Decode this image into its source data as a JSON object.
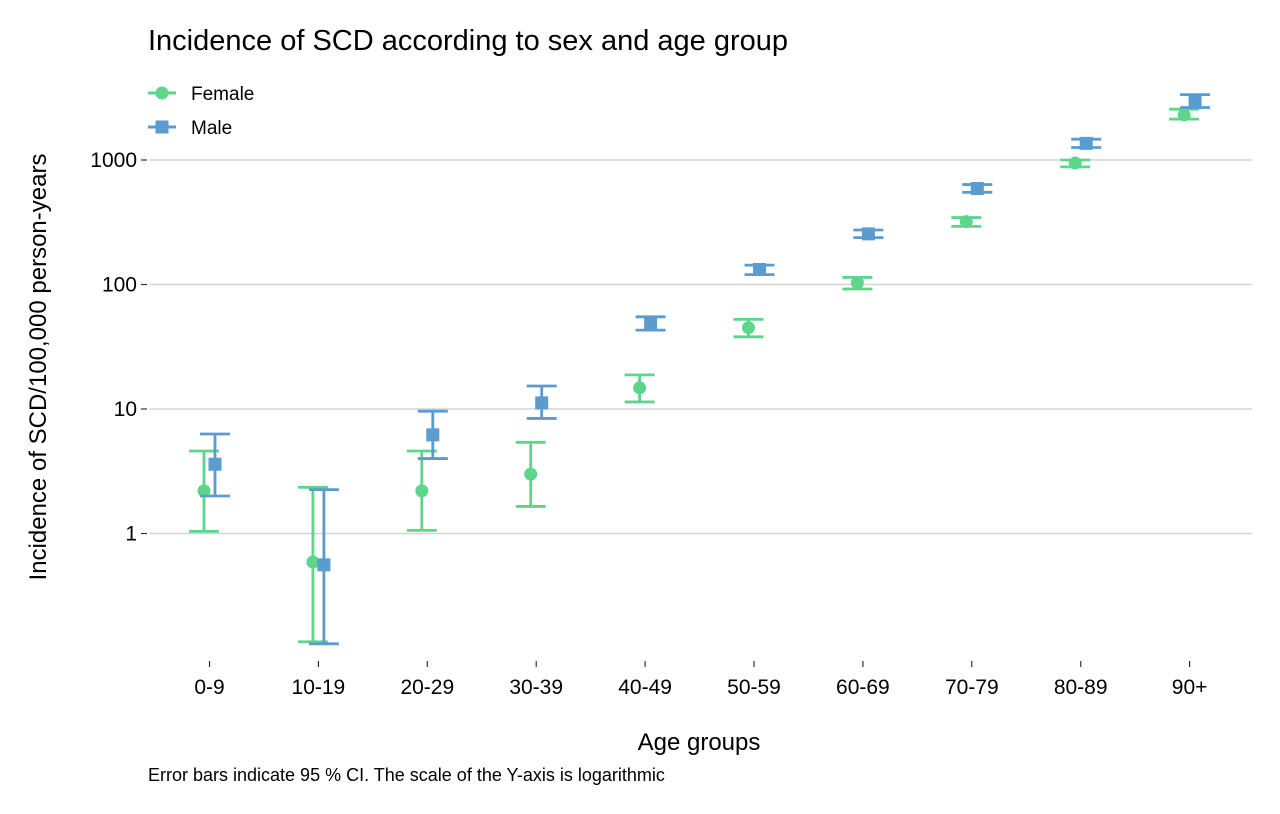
{
  "chart_data": {
    "type": "scatter",
    "title": "Incidence of SCD according to sex and age group",
    "xlabel": "Age groups",
    "ylabel": "Incidence of SCD/100,000 person-years",
    "caption": "Error bars indicate 95 % CI. The scale of the Y-axis is logarithmic",
    "y_scale": "log",
    "ylim": [
      0.13,
      3600
    ],
    "y_ticks": [
      1,
      10,
      100,
      1000
    ],
    "y_tick_labels": [
      "1",
      "10",
      "100",
      "1000"
    ],
    "grid": "horizontal",
    "legend_position": "top-left",
    "categories": [
      "0-9",
      "10-19",
      "20-29",
      "30-39",
      "40-49",
      "50-59",
      "60-69",
      "70-79",
      "80-89",
      "90+"
    ],
    "series": [
      {
        "name": "Female",
        "marker": "circle",
        "color": "#5dd68b",
        "values": [
          2.2,
          0.59,
          2.2,
          3.0,
          14.8,
          45,
          103,
          320,
          945,
          2300
        ],
        "lower": [
          1.04,
          0.135,
          1.06,
          1.65,
          11.4,
          38,
          92,
          293,
          880,
          2130
        ],
        "upper": [
          4.6,
          2.35,
          4.6,
          5.4,
          18.8,
          52.5,
          114,
          345,
          1000,
          2560
        ]
      },
      {
        "name": "Male",
        "marker": "square",
        "color": "#5a9bd0",
        "values": [
          3.6,
          0.56,
          6.2,
          11.2,
          48,
          132,
          255,
          590,
          1360,
          2900
        ],
        "lower": [
          2.0,
          0.13,
          4.0,
          8.4,
          43,
          120,
          238,
          550,
          1260,
          2640
        ],
        "upper": [
          6.3,
          2.25,
          9.6,
          15.3,
          55,
          143,
          274,
          635,
          1470,
          3350
        ]
      }
    ]
  }
}
